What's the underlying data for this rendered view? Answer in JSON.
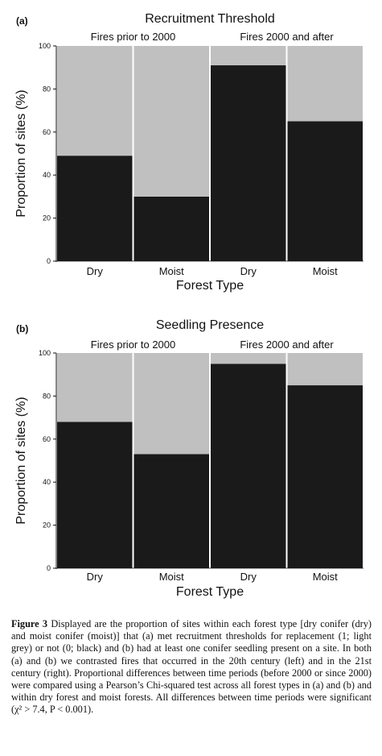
{
  "chart_data": [
    {
      "type": "bar",
      "stacked": true,
      "panel": "(a)",
      "title": "Recruitment Threshold",
      "groups": [
        "Fires prior to 2000",
        "Fires 2000 and after"
      ],
      "categories": [
        "Dry",
        "Moist",
        "Dry",
        "Moist"
      ],
      "category_groups": [
        0,
        0,
        1,
        1
      ],
      "series": [
        {
          "color": "#1a1a1a",
          "values": [
            49,
            30,
            91,
            65
          ]
        },
        {
          "color": "#c0c0c0",
          "values": [
            51,
            70,
            9,
            35
          ]
        }
      ],
      "xlabel": "Forest Type",
      "ylabel": "Proportion of sites (%)",
      "ylim": [
        0,
        100
      ],
      "yticks": [
        0,
        20,
        40,
        60,
        80,
        100
      ],
      "grid": false
    },
    {
      "type": "bar",
      "stacked": true,
      "panel": "(b)",
      "title": "Seedling Presence",
      "groups": [
        "Fires prior to 2000",
        "Fires 2000 and after"
      ],
      "categories": [
        "Dry",
        "Moist",
        "Dry",
        "Moist"
      ],
      "category_groups": [
        0,
        0,
        1,
        1
      ],
      "series": [
        {
          "color": "#1a1a1a",
          "values": [
            68,
            53,
            95,
            85
          ]
        },
        {
          "color": "#c0c0c0",
          "values": [
            32,
            47,
            5,
            15
          ]
        }
      ],
      "xlabel": "Forest Type",
      "ylabel": "Proportion of sites (%)",
      "ylim": [
        0,
        100
      ],
      "yticks": [
        0,
        20,
        40,
        60,
        80,
        100
      ],
      "grid": false
    }
  ],
  "caption": {
    "label": "Figure 3",
    "text": "Displayed are the proportion of sites within each forest type [dry conifer (dry) and moist conifer (moist)] that (a) met recruitment thresholds for replacement (1; light grey) or not (0; black) and (b) had at least one conifer seedling present on a site. In both (a) and (b) we contrasted fires that occurred in the 20th century (left) and in the 21st century (right). Proportional differences between time periods (before 2000 or since 2000) were compared using a Pearson’s Chi-squared test across all forest types in (a) and (b) and within dry forest and moist forests. All differences between time periods were significant (χ² > 7.4, P < 0.001)."
  }
}
